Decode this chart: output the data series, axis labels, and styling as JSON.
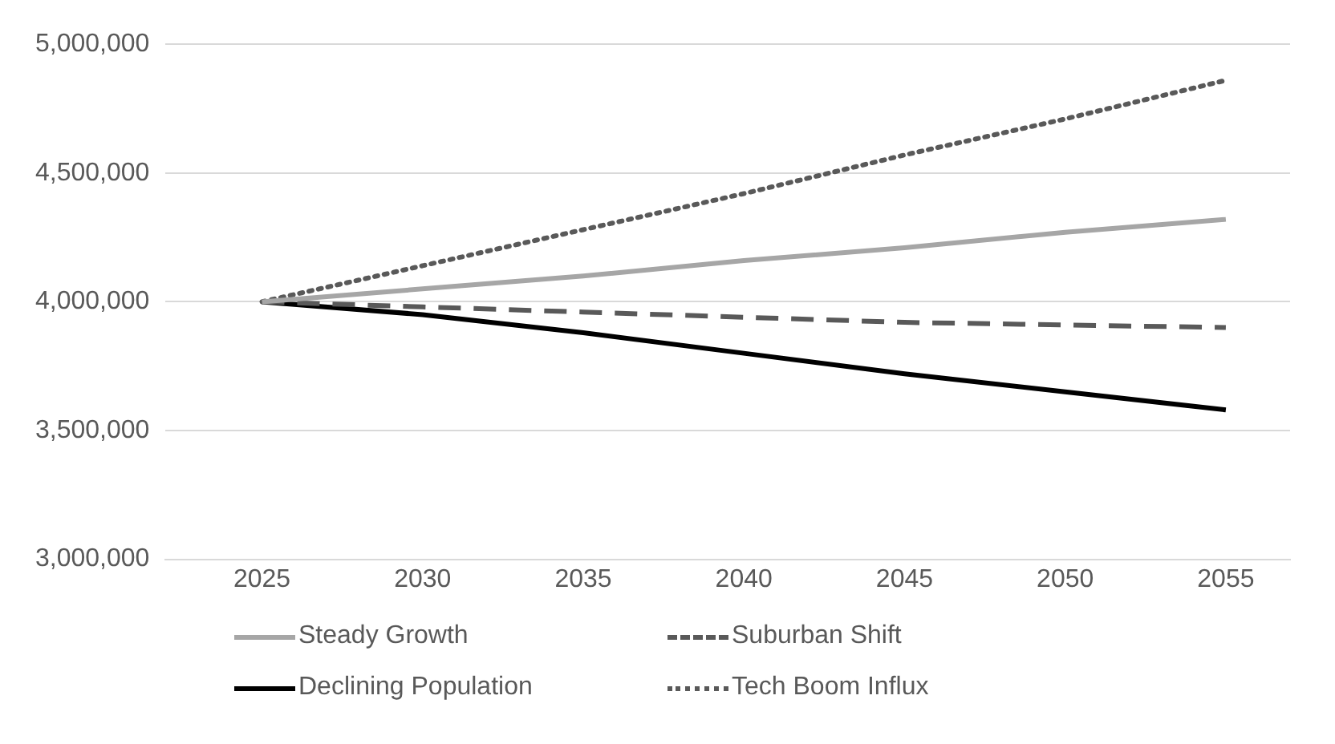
{
  "chart_data": {
    "type": "line",
    "x": [
      2025,
      2030,
      2035,
      2040,
      2045,
      2050,
      2055
    ],
    "xlim": [
      2022,
      2057
    ],
    "xticks": [
      2025,
      2030,
      2035,
      2040,
      2045,
      2050,
      2055
    ],
    "ylim": [
      3000000,
      5000000
    ],
    "yticks": [
      {
        "value": 3000000,
        "label": "3,000,000"
      },
      {
        "value": 3500000,
        "label": "3,500,000"
      },
      {
        "value": 4000000,
        "label": "4,000,000"
      },
      {
        "value": 4500000,
        "label": "4,500,000"
      },
      {
        "value": 5000000,
        "label": "5,000,000"
      }
    ],
    "grid": "y",
    "legend": "bottom",
    "marker": "none",
    "series": [
      {
        "name": "Steady Growth",
        "color": "#a6a6a6",
        "line_style": "solid",
        "values": [
          4000000,
          4050000,
          4100000,
          4160000,
          4210000,
          4270000,
          4320000
        ]
      },
      {
        "name": "Suburban Shift",
        "color": "#595959",
        "line_style": "dashed",
        "values": [
          4000000,
          3980000,
          3960000,
          3940000,
          3920000,
          3910000,
          3900000
        ]
      },
      {
        "name": "Declining Population",
        "color": "#000000",
        "line_style": "solid",
        "values": [
          4000000,
          3950000,
          3880000,
          3800000,
          3720000,
          3650000,
          3580000
        ]
      },
      {
        "name": "Tech Boom Influx",
        "color": "#595959",
        "line_style": "dotted",
        "values": [
          4000000,
          4140000,
          4280000,
          4420000,
          4570000,
          4710000,
          4860000
        ]
      }
    ]
  }
}
